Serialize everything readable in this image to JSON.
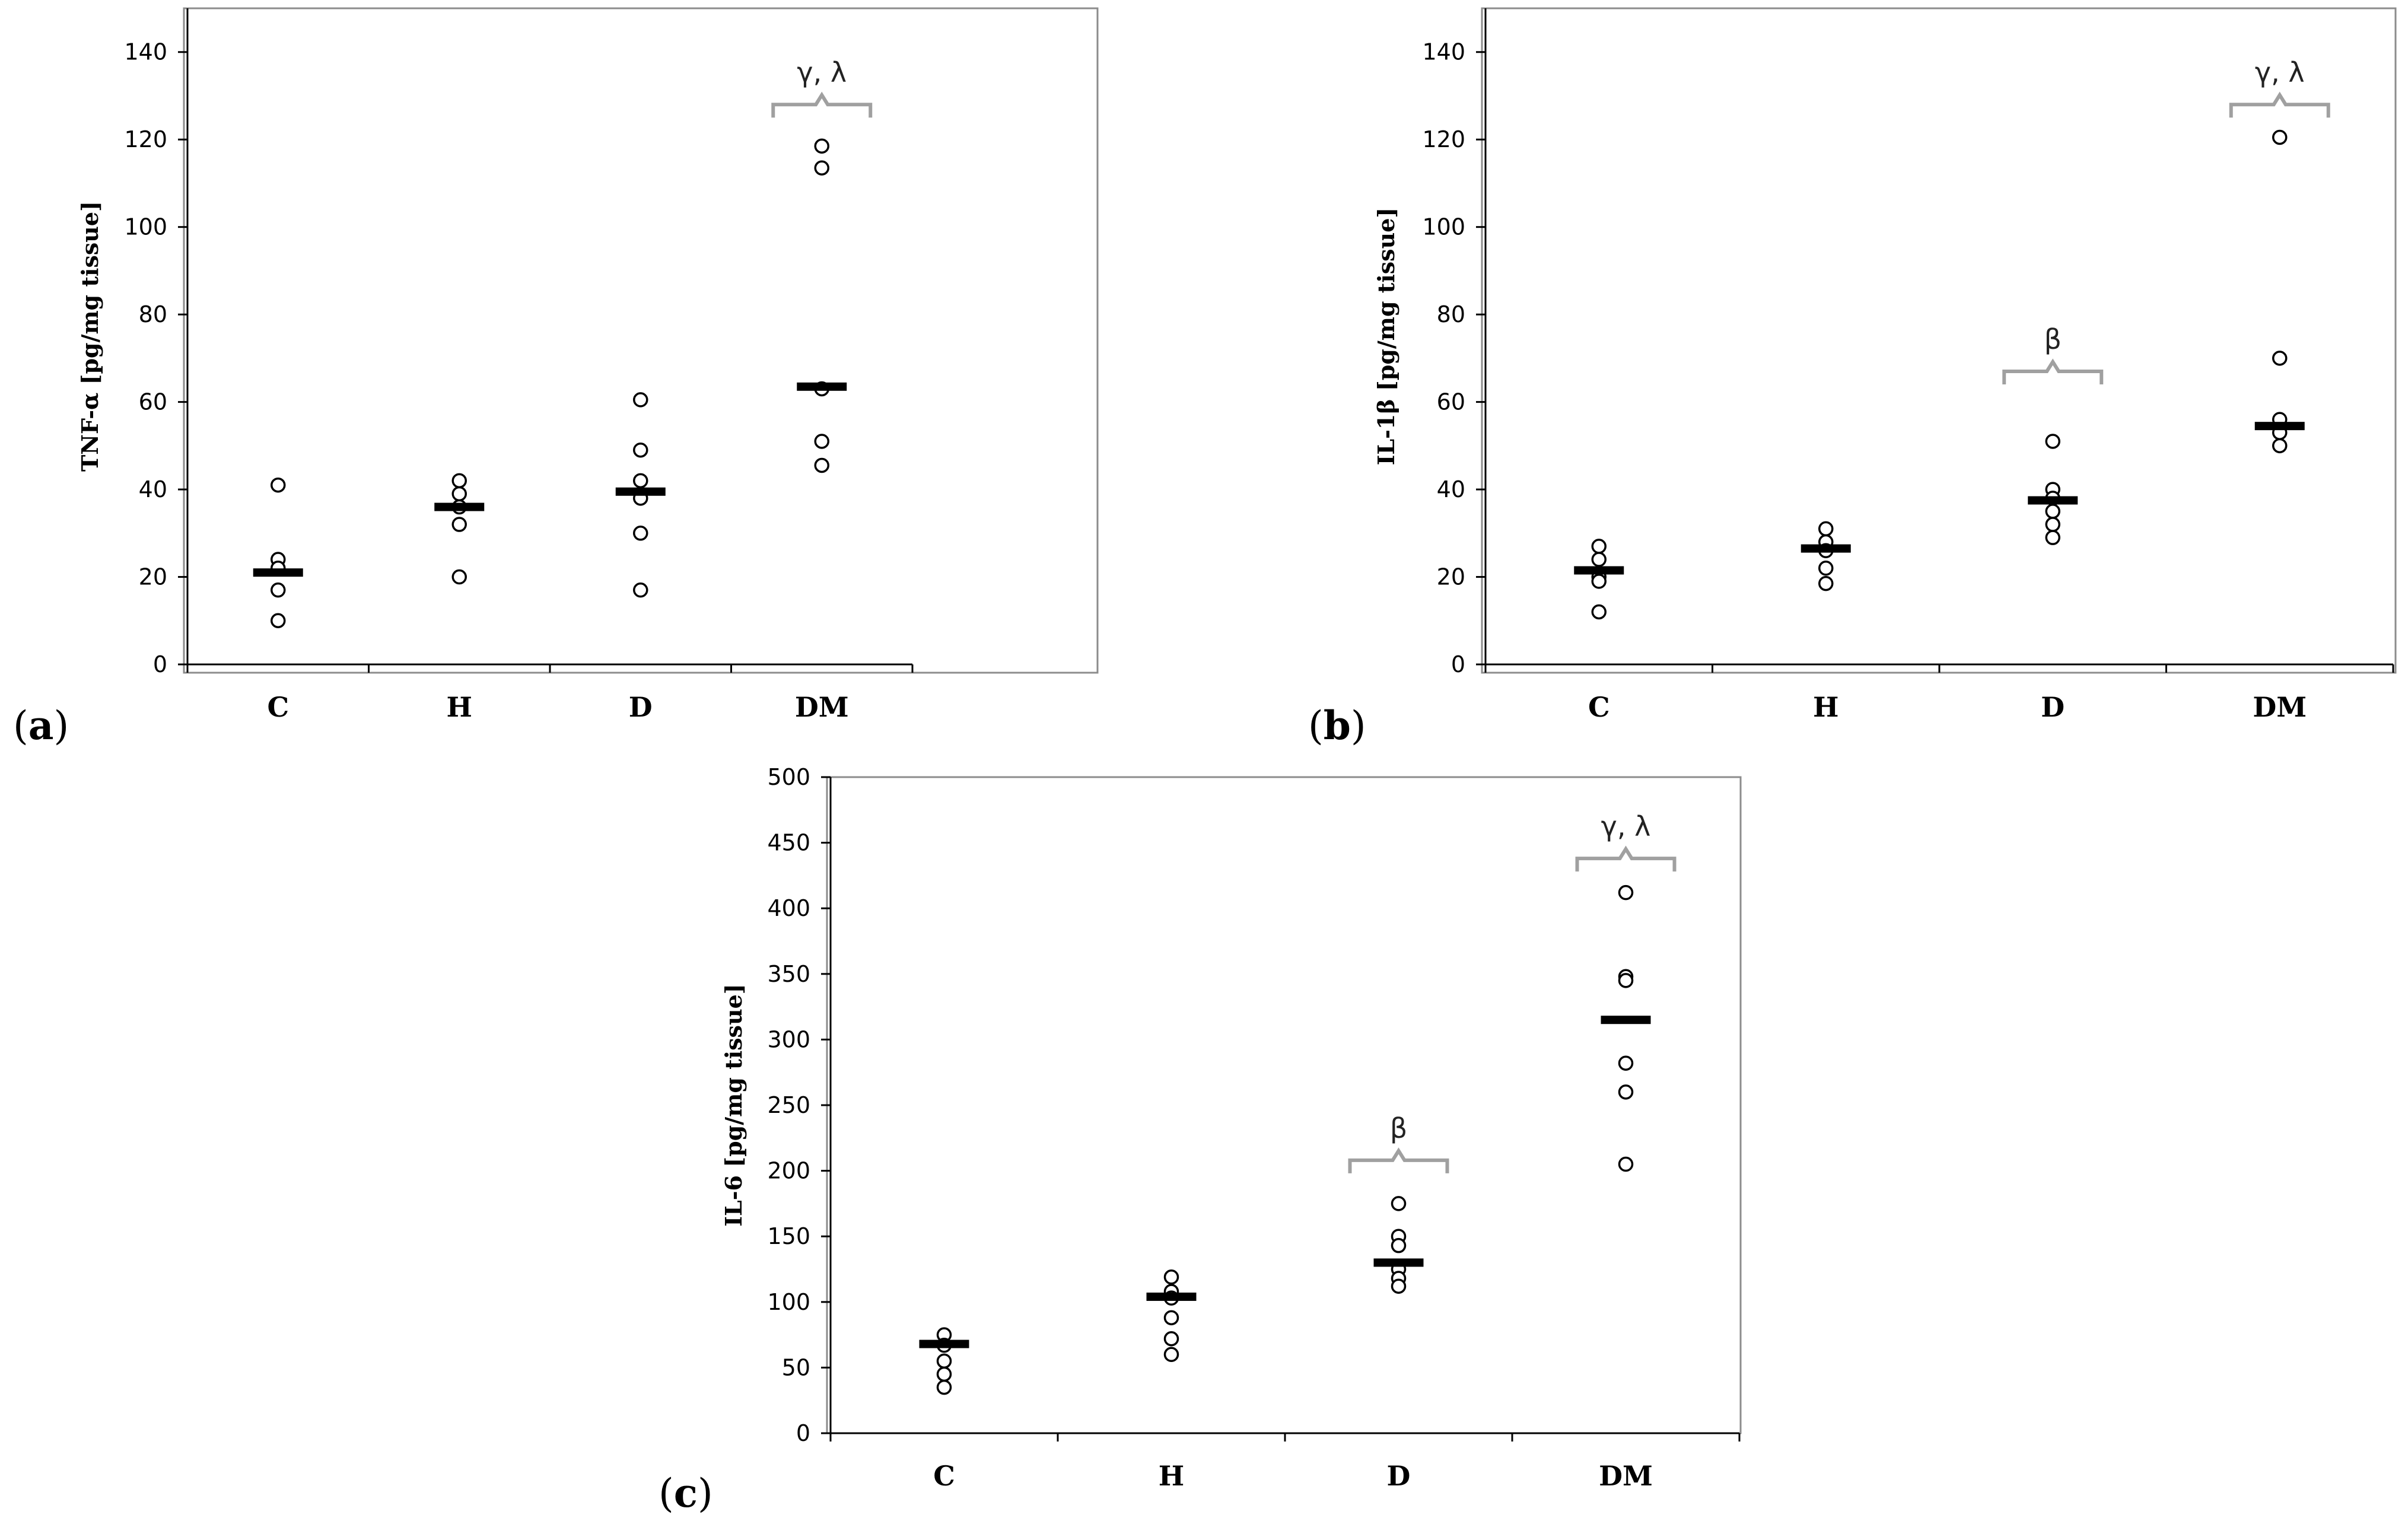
{
  "panel_labels": [
    "a",
    "b",
    "c"
  ],
  "chart_data": [
    {
      "type": "scatter",
      "panel": "a",
      "ylabel": "TNF-α  [pg/mg tissue]",
      "xlabel": "",
      "categories": [
        "C",
        "H",
        "D",
        "DM"
      ],
      "ylim": [
        0,
        150
      ],
      "yticks": [
        0,
        20,
        40,
        60,
        80,
        100,
        120,
        140
      ],
      "points": {
        "C": [
          41,
          24,
          22,
          17,
          10
        ],
        "H": [
          42,
          39,
          36,
          32,
          20
        ],
        "D": [
          60.5,
          49,
          42,
          38,
          30,
          17
        ],
        "DM": [
          118.5,
          113.5,
          63,
          51,
          45.5
        ]
      },
      "medians": {
        "C": 21,
        "H": 36,
        "D": 39.5,
        "DM": 63.5
      },
      "annotations": [
        {
          "category": "DM",
          "text": "γ, λ",
          "at": 128
        }
      ]
    },
    {
      "type": "scatter",
      "panel": "b",
      "ylabel": "IL-1β  [pg/mg tissue]",
      "xlabel": "",
      "categories": [
        "C",
        "H",
        "D",
        "DM"
      ],
      "ylim": [
        0,
        150
      ],
      "yticks": [
        0,
        20,
        40,
        60,
        80,
        100,
        120,
        140
      ],
      "points": {
        "C": [
          27,
          24,
          20,
          19,
          12
        ],
        "H": [
          31,
          28,
          26,
          22,
          18.5
        ],
        "D": [
          51,
          40,
          38,
          35,
          32,
          29
        ],
        "DM": [
          120.5,
          70,
          56,
          53,
          50
        ]
      },
      "medians": {
        "C": 21.5,
        "H": 26.5,
        "D": 37.5,
        "DM": 54.5
      },
      "annotations": [
        {
          "category": "D",
          "text": "β",
          "at": 67
        },
        {
          "category": "DM",
          "text": "γ, λ",
          "at": 128
        }
      ]
    },
    {
      "type": "scatter",
      "panel": "c",
      "ylabel": "IL-6  [pg/mg tissue]",
      "xlabel": "",
      "categories": [
        "C",
        "H",
        "D",
        "DM"
      ],
      "ylim": [
        0,
        500
      ],
      "yticks": [
        0,
        50,
        100,
        150,
        200,
        250,
        300,
        350,
        400,
        450,
        500
      ],
      "points": {
        "C": [
          75,
          67,
          55,
          45,
          35
        ],
        "H": [
          119,
          108,
          103,
          88,
          72,
          60
        ],
        "D": [
          175,
          150,
          143,
          125,
          118,
          112
        ],
        "DM": [
          412,
          348,
          345,
          282,
          260,
          205
        ]
      },
      "medians": {
        "C": 68,
        "H": 104,
        "D": 130,
        "DM": 315
      },
      "annotations": [
        {
          "category": "D",
          "text": "β",
          "at": 208
        },
        {
          "category": "DM",
          "text": "γ, λ",
          "at": 438
        }
      ]
    }
  ]
}
